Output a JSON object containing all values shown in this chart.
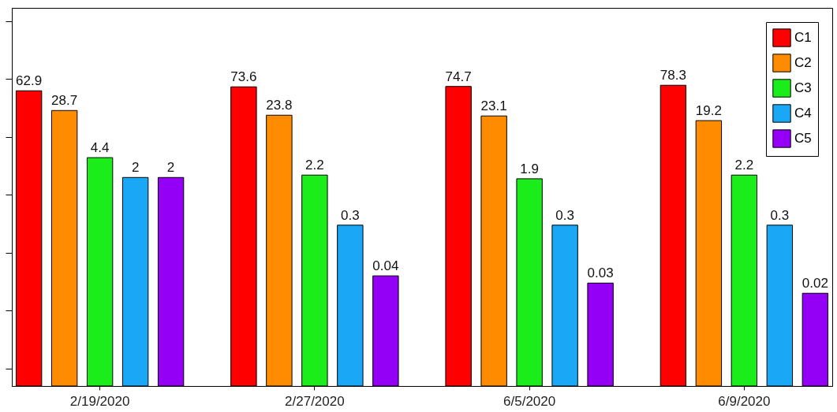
{
  "chart_data": {
    "type": "bar",
    "categories": [
      "2/19/2020",
      "2/27/2020",
      "6/5/2020",
      "6/9/2020"
    ],
    "log": "y",
    "ylim": [
      0.0005,
      1700
    ],
    "yticks": [
      {
        "value": 0.001,
        "label": null
      },
      {
        "value": 0.01,
        "label": null
      },
      {
        "value": 0.1,
        "label": null
      },
      {
        "value": 1,
        "label": null
      },
      {
        "value": 10,
        "label": null
      },
      {
        "value": 100,
        "label": null
      },
      {
        "value": 1000,
        "label": null
      }
    ],
    "tick_labels": "x",
    "data_labels": true,
    "legend": "top right",
    "series": [
      {
        "name": "C1",
        "color": "#ff0000",
        "values": [
          62.9,
          73.6,
          74.7,
          78.3
        ]
      },
      {
        "name": "C2",
        "color": "#ff8c00",
        "values": [
          28.7,
          23.8,
          23.1,
          19.2
        ]
      },
      {
        "name": "C3",
        "color": "#1aed1a",
        "values": [
          4.4,
          2.2,
          1.9,
          2.2
        ]
      },
      {
        "name": "C4",
        "color": "#1aa7f5",
        "values": [
          2,
          0.3,
          0.3,
          0.3
        ]
      },
      {
        "name": "C5",
        "color": "#9400f5",
        "values": [
          2,
          0.04,
          0.03,
          0.02
        ]
      }
    ]
  }
}
